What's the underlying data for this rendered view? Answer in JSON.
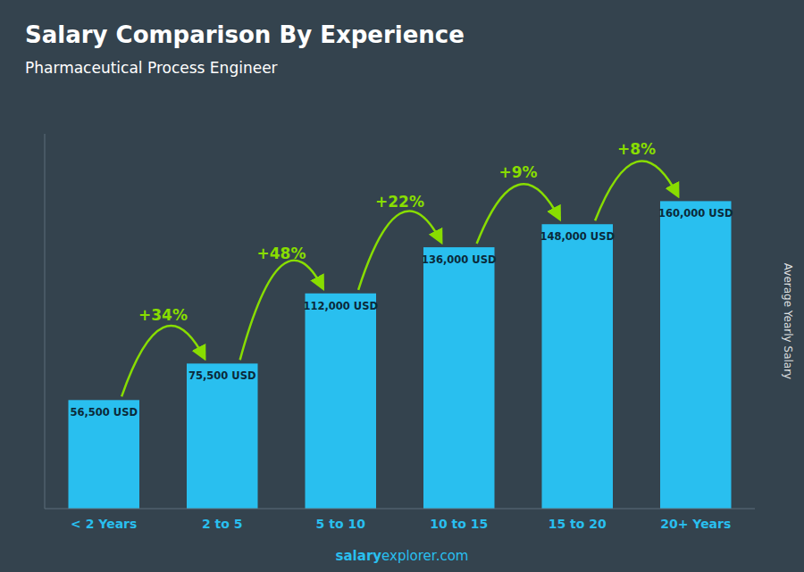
{
  "chart_data": {
    "type": "bar",
    "title": "Salary Comparison By Experience",
    "subtitle": "Pharmaceutical Process Engineer",
    "ylabel": "Average Yearly Salary",
    "categories": [
      "< 2 Years",
      "2 to 5",
      "5 to 10",
      "10 to 15",
      "15 to 20",
      "20+ Years"
    ],
    "values": [
      56500,
      75500,
      112000,
      136000,
      148000,
      160000
    ],
    "value_labels": [
      "56,500 USD",
      "75,500 USD",
      "112,000 USD",
      "136,000 USD",
      "148,000 USD",
      "160,000 USD"
    ],
    "data_labels": true,
    "color": "#29BFEF",
    "ylim": [
      0,
      195000
    ],
    "tick_labels": "x",
    "grid": false,
    "annotations": [
      {
        "text": "+34%",
        "color": "#88DD00"
      },
      {
        "text": "+48%",
        "color": "#88DD00"
      },
      {
        "text": "+22%",
        "color": "#88DD00"
      },
      {
        "text": "+9%",
        "color": "#88DD00"
      },
      {
        "text": "+8%",
        "color": "#88DD00"
      }
    ],
    "watermark": [
      "salary",
      "explorer.com"
    ]
  }
}
